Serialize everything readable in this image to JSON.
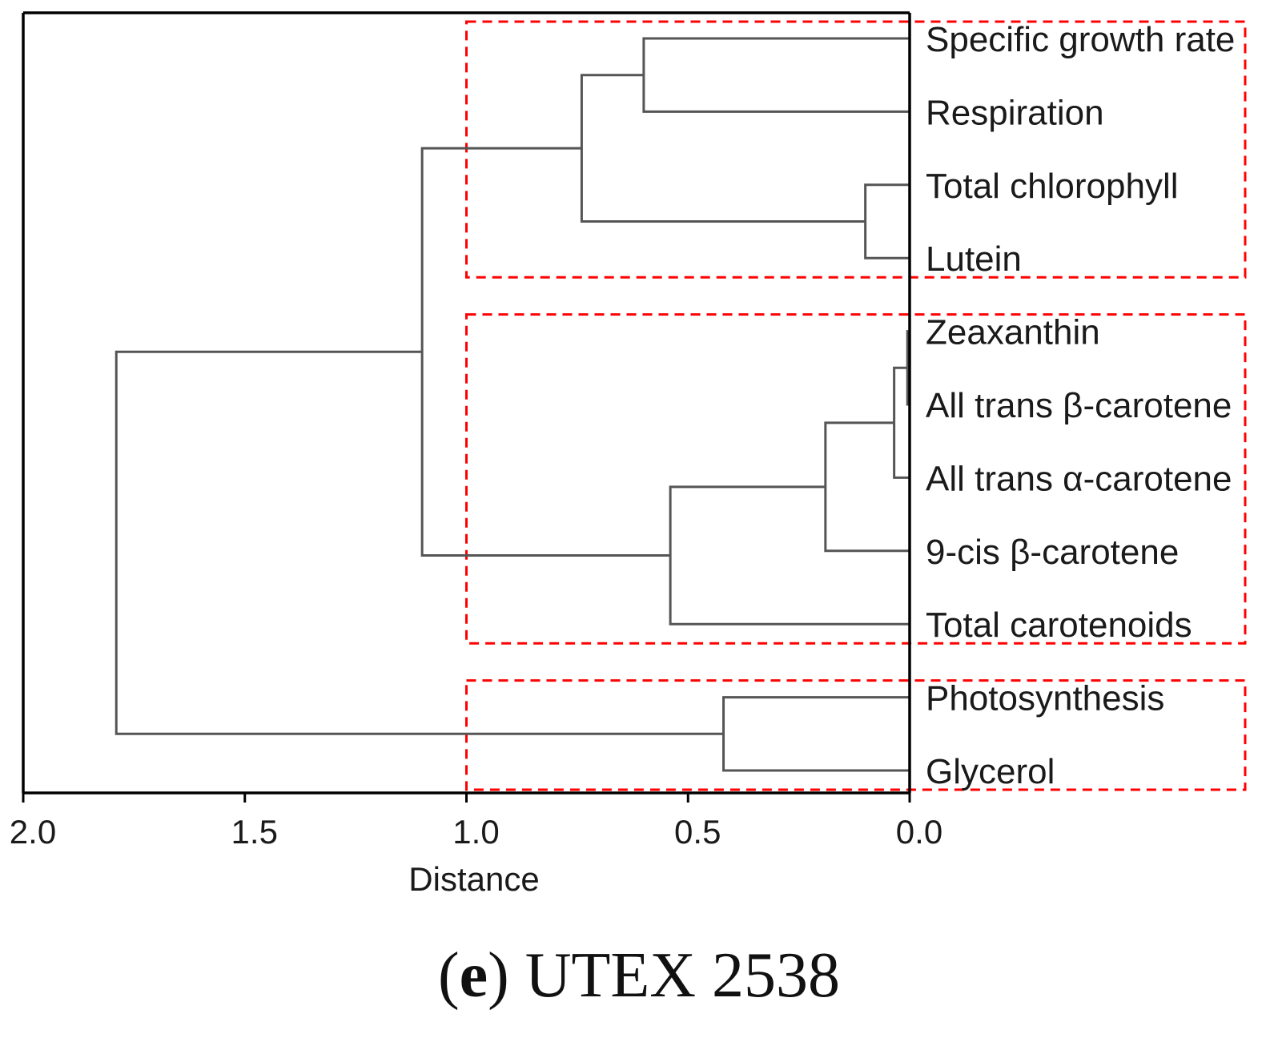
{
  "chart_data": {
    "type": "dendrogram",
    "xlabel": "Distance",
    "xlim": [
      2.0,
      0.0
    ],
    "xticks": [
      2.0,
      1.5,
      1.0,
      0.5,
      0.0
    ],
    "xtick_labels": [
      "2.0",
      "1.5",
      "1.0",
      "0.5",
      "0.0"
    ],
    "leaves": [
      "Specific growth rate",
      "Respiration",
      "Total chlorophyll",
      "Lutein",
      "Zeaxanthin",
      "All trans β-carotene",
      "All trans α-carotene",
      "9-cis β-carotene",
      "Total carotenoids",
      "Photosynthesis",
      "Glycerol"
    ],
    "merges": [
      {
        "left": "leaf:4",
        "right": "leaf:5",
        "height": 0.005,
        "id": "n1"
      },
      {
        "left": "n1",
        "right": "leaf:6",
        "height": 0.035,
        "id": "n2"
      },
      {
        "left": "n2",
        "right": "leaf:7",
        "height": 0.19,
        "id": "n3"
      },
      {
        "left": "n3",
        "right": "leaf:8",
        "height": 0.54,
        "id": "n4"
      },
      {
        "left": "leaf:2",
        "right": "leaf:3",
        "height": 0.1,
        "id": "n5"
      },
      {
        "left": "leaf:0",
        "right": "leaf:1",
        "height": 0.6,
        "id": "n6"
      },
      {
        "left": "n6",
        "right": "n5",
        "height": 0.74,
        "id": "n7"
      },
      {
        "left": "leaf:9",
        "right": "leaf:10",
        "height": 0.42,
        "id": "n8"
      },
      {
        "left": "n7",
        "right": "n4",
        "height": 1.1,
        "id": "n9"
      },
      {
        "left": "n9",
        "right": "n8",
        "height": 1.79,
        "id": "n10"
      }
    ],
    "cluster_boxes": [
      {
        "leaves": [
          0,
          3
        ],
        "threshold": 1.0
      },
      {
        "leaves": [
          4,
          8
        ],
        "threshold": 1.0
      },
      {
        "leaves": [
          9,
          10
        ],
        "threshold": 1.0
      }
    ],
    "colors": {
      "tree": "#555555",
      "box": "#ff0000",
      "axis": "#000000"
    }
  },
  "caption": {
    "panel": "e",
    "strain": "UTEX 2538"
  }
}
